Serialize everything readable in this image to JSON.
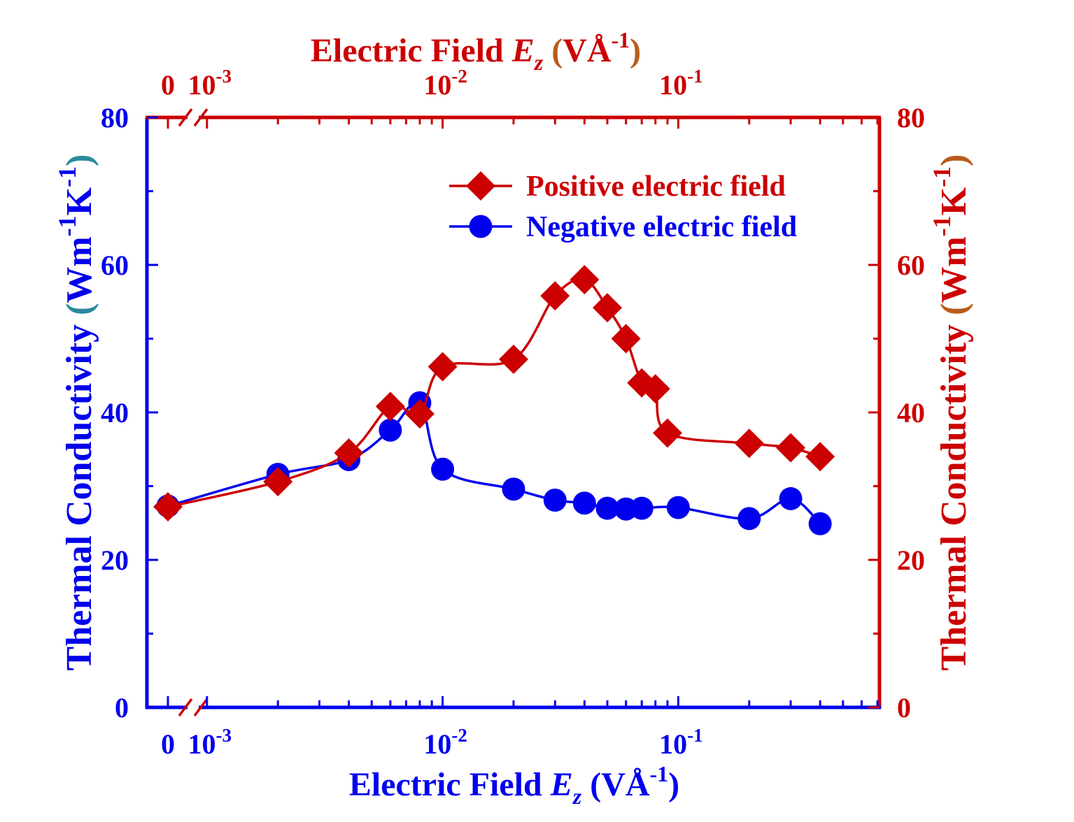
{
  "chart_data": {
    "type": "line",
    "x_scale": "log",
    "x_break": "between 0 and 10^-3",
    "x_tick_labels": [
      {
        "value": 0,
        "base": "0",
        "exp": ""
      },
      {
        "value": 0.001,
        "base": "10",
        "exp": "-3"
      },
      {
        "value": 0.01,
        "base": "10",
        "exp": "-2"
      },
      {
        "value": 0.1,
        "base": "10",
        "exp": "-1"
      }
    ],
    "y_ticks": [
      0,
      20,
      40,
      60,
      80
    ],
    "ylim": [
      0,
      80
    ],
    "x_axis_label": {
      "prefix": "Electric Field ",
      "var": "E",
      "sub": "z",
      "unit_open": " (VÅ",
      "unit_exp": "-1",
      "unit_close": ")"
    },
    "y_axis_label": {
      "prefix": "Thermal Conductivity ",
      "open": "(",
      "unit": "Wm",
      "exp1": "-1",
      "unit2": "K",
      "exp2": "-1",
      "close": ")"
    },
    "legend_position": "top-right",
    "series": [
      {
        "name": "Positive electric field",
        "marker": "diamond",
        "color": "#cc0000",
        "x": [
          0,
          0.002,
          0.004,
          0.006,
          0.008,
          0.01,
          0.02,
          0.03,
          0.04,
          0.05,
          0.06,
          0.07,
          0.08,
          0.09,
          0.2,
          0.3,
          0.4
        ],
        "y": [
          27.2,
          30.6,
          34.5,
          40.8,
          39.8,
          46.2,
          47.2,
          55.8,
          58.0,
          54.2,
          50.0,
          44.0,
          43.2,
          37.2,
          35.8,
          35.2,
          34.0
        ]
      },
      {
        "name": "Negative electric field",
        "marker": "circle",
        "color": "#0000ee",
        "x": [
          0,
          0.002,
          0.004,
          0.006,
          0.008,
          0.01,
          0.02,
          0.03,
          0.04,
          0.05,
          0.06,
          0.07,
          0.1,
          0.2,
          0.3,
          0.4
        ],
        "y": [
          27.3,
          31.6,
          33.6,
          37.6,
          41.3,
          32.3,
          29.6,
          28.1,
          27.7,
          27.0,
          26.9,
          27.0,
          27.1,
          25.6,
          28.3,
          24.9
        ]
      }
    ],
    "colors": {
      "left_axis": "#0000ee",
      "right_axis": "#cc0000",
      "paren_left": "#2a8a9a",
      "paren_right": "#b85c1a"
    }
  }
}
